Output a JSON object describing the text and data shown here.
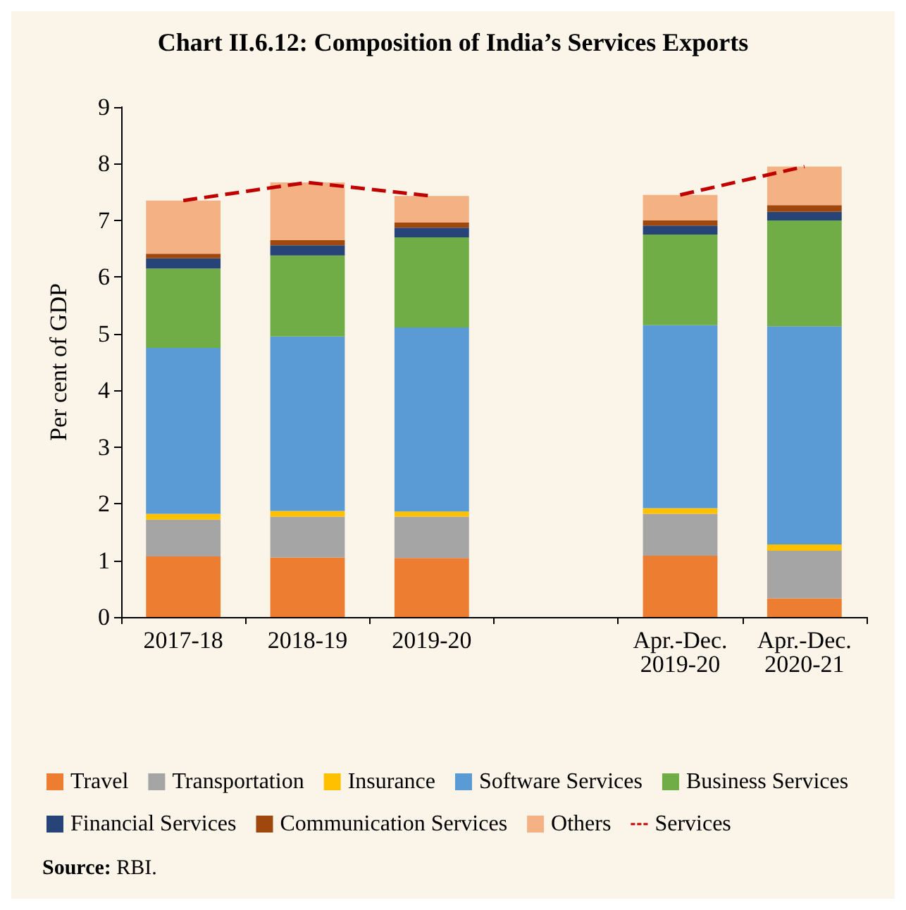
{
  "chart_data": {
    "type": "bar",
    "stacked": true,
    "title": "Chart II.6.12: Composition of India’s Services Exports",
    "ylabel": "Per cent of GDP",
    "categories": [
      "2017-18",
      "2018-19",
      "2019-20",
      null,
      "Apr.-Dec.\n2019-20",
      "Apr.-Dec.\n2020-21"
    ],
    "series": [
      {
        "name": "Travel",
        "color": "#ed7d31",
        "values": [
          1.07,
          1.05,
          1.04,
          null,
          1.08,
          0.33
        ]
      },
      {
        "name": "Transportation",
        "color": "#a5a5a5",
        "values": [
          0.65,
          0.72,
          0.73,
          null,
          0.74,
          0.84
        ]
      },
      {
        "name": "Insurance",
        "color": "#ffc000",
        "values": [
          0.1,
          0.1,
          0.09,
          null,
          0.1,
          0.11
        ]
      },
      {
        "name": "Software Services",
        "color": "#5b9bd5",
        "values": [
          2.93,
          3.08,
          3.25,
          null,
          3.23,
          3.85
        ]
      },
      {
        "name": "Business Services",
        "color": "#70ad47",
        "values": [
          1.4,
          1.43,
          1.59,
          null,
          1.6,
          1.87
        ]
      },
      {
        "name": "Financial Services",
        "color": "#264478",
        "values": [
          0.18,
          0.18,
          0.17,
          null,
          0.16,
          0.15
        ]
      },
      {
        "name": "Communication Services",
        "color": "#9e480e",
        "values": [
          0.08,
          0.09,
          0.09,
          null,
          0.09,
          0.12
        ]
      },
      {
        "name": "Others",
        "color": "#f4b183",
        "values": [
          0.94,
          1.02,
          0.47,
          null,
          0.45,
          0.68
        ]
      },
      {
        "name": "Services",
        "type": "line",
        "color": "#c00000",
        "line_style": "dashed",
        "marker": "none",
        "values": [
          7.35,
          7.67,
          7.43,
          null,
          7.45,
          7.95
        ]
      }
    ],
    "ylim": [
      0,
      9
    ],
    "yticks": [
      0,
      1,
      2,
      3,
      4,
      5,
      6,
      7,
      8,
      9
    ],
    "grid": false,
    "legend": "bottom",
    "annotations": [
      "Source: RBI."
    ]
  }
}
